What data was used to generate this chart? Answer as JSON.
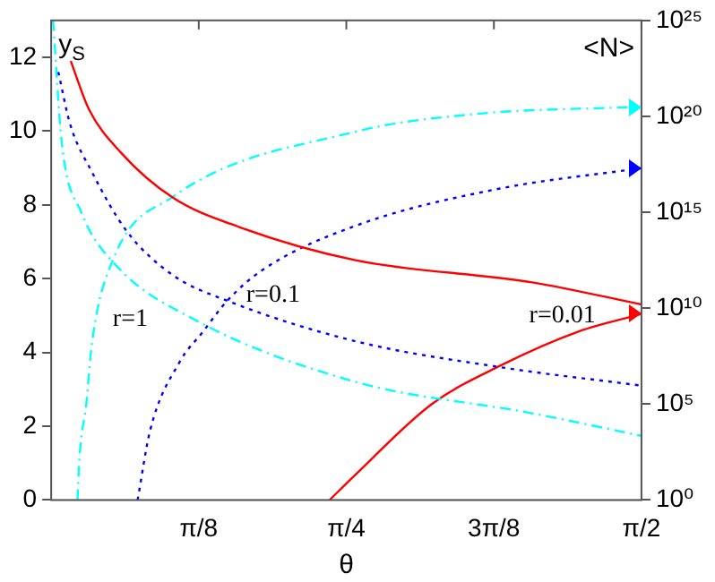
{
  "chart_data": {
    "type": "line",
    "xlabel": "θ",
    "ylabel": "y$_{S}$",
    "y2label": "<N>",
    "xlim": [
      0,
      1.5708
    ],
    "xticks": [
      {
        "value": 0.3927,
        "label": "π/8"
      },
      {
        "value": 0.7854,
        "label": "π/4"
      },
      {
        "value": 1.1781,
        "label": "3π/8"
      },
      {
        "value": 1.5708,
        "label": "π/2"
      }
    ],
    "ylim": [
      0,
      13
    ],
    "yticks": [
      0,
      2,
      4,
      6,
      8,
      10,
      12
    ],
    "y2lim": [
      1,
      1e+25
    ],
    "y2ticks": [
      {
        "value": 1,
        "label": "10⁰"
      },
      {
        "value": 100000.0,
        "label": "10⁵"
      },
      {
        "value": 10000000000.0,
        "label": "10¹⁰"
      },
      {
        "value": 1000000000000000.0,
        "label": "10¹⁵"
      },
      {
        "value": 1e+20,
        "label": "10²⁰"
      },
      {
        "value": 1e+25,
        "label": "10²⁵"
      }
    ],
    "log": "y2",
    "grid": false,
    "legend": false,
    "marker": "none",
    "series": [
      {
        "color": "#ff0000",
        "line_style": "solid",
        "x": [
          0.052,
          0.1,
          0.187,
          0.323,
          0.5,
          0.81,
          1.28,
          1.5708
        ],
        "values": [
          11.9,
          10.6,
          9.4,
          8.2,
          7.4,
          6.5,
          5.9,
          5.3
        ]
      },
      {
        "color": "#0000ff",
        "line_style": "dotted",
        "x": [
          0.019,
          0.05,
          0.108,
          0.2,
          0.323,
          0.469,
          0.811,
          1.195,
          1.5708
        ],
        "values": [
          11.6,
          10.2,
          8.9,
          7.3,
          6.1,
          5.4,
          4.3,
          3.6,
          3.1
        ]
      },
      {
        "color": "#00ffff",
        "line_style": "dashdot",
        "x": [
          0.005,
          0.028,
          0.08,
          0.169,
          0.389,
          0.811,
          1.28,
          1.5708
        ],
        "values": [
          13,
          9.7,
          7.8,
          6.4,
          4.85,
          3.2,
          2.35,
          1.74
        ]
      },
      {
        "color": "#ff0000",
        "line_style": "solid",
        "axis": "y2",
        "x": [
          0.741,
          0.811,
          1.013,
          1.195,
          1.406,
          1.5708
        ],
        "values": [
          1,
          22,
          100000.0,
          10000000.0,
          630000000.0,
          5000000000.0
        ]
      },
      {
        "color": "#0000ff",
        "line_style": "dotted",
        "axis": "y2",
        "x": [
          0.23,
          0.263,
          0.342,
          0.403,
          0.469,
          0.563,
          0.811,
          1.186,
          1.5708
        ],
        "values": [
          1,
          4000.0,
          16000000.0,
          560000000.0,
          25000000000.0,
          1000000000000.0,
          200000000000000.0,
          1.6e+16,
          2e+17
        ]
      },
      {
        "color": "#00ffff",
        "line_style": "dashdot",
        "axis": "y2",
        "x": [
          0.07,
          0.075,
          0.094,
          0.108,
          0.164,
          0.323,
          0.811,
          1.125,
          1.5708
        ],
        "values": [
          1,
          130,
          130000.0,
          130000000.0,
          3200000000000.0,
          6300000000000000.0,
          1.6e+19,
          1.3e+20,
          3.2e+20
        ]
      }
    ],
    "annotations": [
      "r=1",
      "r=0.1",
      "r=0.01"
    ]
  }
}
